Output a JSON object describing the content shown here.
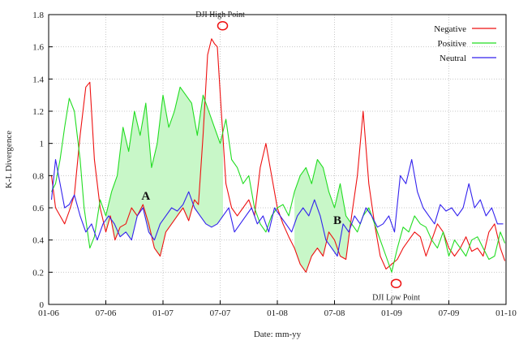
{
  "chart_data": {
    "type": "line",
    "xlabel": "Date: mm-yy",
    "ylabel": "K-L Divergence",
    "x_ticks": [
      "01-06",
      "07-06",
      "01-07",
      "07-07",
      "01-08",
      "07-08",
      "01-09",
      "07-09",
      "01-10"
    ],
    "ylim": [
      0,
      1.8
    ],
    "y_ticks": [
      "0",
      "0.2",
      "0.4",
      "0.6",
      "0.8",
      "1",
      "1.2",
      "1.4",
      "1.6",
      "1.8"
    ],
    "grid": true,
    "legend_position": "top-right",
    "series": [
      {
        "name": "Negative",
        "color": "#ee1111",
        "x": [
          0.05,
          0.12,
          0.2,
          0.28,
          0.36,
          0.45,
          0.55,
          0.65,
          0.72,
          0.8,
          0.9,
          1.0,
          1.08,
          1.16,
          1.25,
          1.35,
          1.45,
          1.55,
          1.65,
          1.75,
          1.85,
          1.95,
          2.05,
          2.15,
          2.25,
          2.35,
          2.45,
          2.55,
          2.62,
          2.7,
          2.78,
          2.85,
          2.9,
          2.95,
          3.02,
          3.1,
          3.2,
          3.3,
          3.4,
          3.5,
          3.6,
          3.7,
          3.8,
          3.9,
          4.0,
          4.1,
          4.2,
          4.3,
          4.4,
          4.5,
          4.6,
          4.7,
          4.8,
          4.9,
          5.0,
          5.1,
          5.2,
          5.3,
          5.4,
          5.5,
          5.6,
          5.7,
          5.8,
          5.9,
          6.0,
          6.1,
          6.2,
          6.3,
          6.4,
          6.5,
          6.6,
          6.7,
          6.8,
          6.9,
          7.0,
          7.1,
          7.2,
          7.3,
          7.4,
          7.5,
          7.6,
          7.7,
          7.8,
          7.9,
          7.98
        ],
        "values": [
          0.8,
          0.6,
          0.55,
          0.5,
          0.58,
          0.68,
          1.05,
          1.35,
          1.38,
          0.9,
          0.6,
          0.45,
          0.55,
          0.4,
          0.48,
          0.5,
          0.6,
          0.55,
          0.62,
          0.5,
          0.35,
          0.3,
          0.45,
          0.5,
          0.55,
          0.6,
          0.52,
          0.65,
          0.62,
          1.05,
          1.55,
          1.65,
          1.62,
          1.6,
          1.2,
          0.75,
          0.6,
          0.55,
          0.6,
          0.65,
          0.55,
          0.85,
          1.0,
          0.8,
          0.6,
          0.5,
          0.42,
          0.35,
          0.25,
          0.2,
          0.3,
          0.35,
          0.3,
          0.45,
          0.4,
          0.3,
          0.28,
          0.55,
          0.8,
          1.2,
          0.75,
          0.5,
          0.3,
          0.22,
          0.25,
          0.28,
          0.35,
          0.4,
          0.45,
          0.42,
          0.3,
          0.4,
          0.5,
          0.45,
          0.35,
          0.3,
          0.35,
          0.42,
          0.33,
          0.35,
          0.3,
          0.45,
          0.5,
          0.35,
          0.27
        ]
      },
      {
        "name": "Positive",
        "color": "#22dd22",
        "x": [
          0.05,
          0.12,
          0.2,
          0.28,
          0.36,
          0.45,
          0.55,
          0.62,
          0.72,
          0.8,
          0.9,
          1.0,
          1.1,
          1.2,
          1.3,
          1.4,
          1.5,
          1.6,
          1.7,
          1.8,
          1.9,
          2.0,
          2.1,
          2.2,
          2.3,
          2.4,
          2.5,
          2.6,
          2.7,
          2.8,
          2.9,
          3.0,
          3.1,
          3.2,
          3.3,
          3.4,
          3.5,
          3.6,
          3.7,
          3.8,
          3.9,
          4.0,
          4.1,
          4.2,
          4.3,
          4.4,
          4.5,
          4.6,
          4.7,
          4.8,
          4.9,
          5.0,
          5.1,
          5.2,
          5.3,
          5.4,
          5.5,
          5.6,
          5.7,
          5.8,
          5.9,
          6.0,
          6.1,
          6.2,
          6.3,
          6.4,
          6.5,
          6.6,
          6.7,
          6.8,
          6.9,
          7.0,
          7.1,
          7.2,
          7.3,
          7.4,
          7.5,
          7.6,
          7.7,
          7.8,
          7.9,
          7.98
        ],
        "values": [
          0.7,
          0.75,
          0.9,
          1.1,
          1.28,
          1.2,
          0.9,
          0.6,
          0.35,
          0.42,
          0.65,
          0.55,
          0.7,
          0.8,
          1.1,
          0.95,
          1.2,
          1.05,
          1.25,
          0.85,
          1.0,
          1.3,
          1.1,
          1.2,
          1.35,
          1.3,
          1.25,
          1.05,
          1.3,
          1.2,
          1.1,
          1.0,
          1.15,
          0.9,
          0.85,
          0.75,
          0.8,
          0.6,
          0.5,
          0.45,
          0.55,
          0.6,
          0.62,
          0.55,
          0.7,
          0.8,
          0.85,
          0.75,
          0.9,
          0.85,
          0.7,
          0.6,
          0.75,
          0.55,
          0.5,
          0.45,
          0.55,
          0.6,
          0.5,
          0.4,
          0.3,
          0.2,
          0.35,
          0.48,
          0.45,
          0.55,
          0.5,
          0.48,
          0.4,
          0.35,
          0.45,
          0.3,
          0.4,
          0.35,
          0.3,
          0.4,
          0.42,
          0.35,
          0.28,
          0.3,
          0.45,
          0.38
        ]
      },
      {
        "name": "Neutral",
        "color": "#3322ee",
        "x": [
          0.05,
          0.12,
          0.2,
          0.28,
          0.36,
          0.45,
          0.55,
          0.65,
          0.75,
          0.85,
          0.95,
          1.05,
          1.15,
          1.25,
          1.35,
          1.45,
          1.55,
          1.65,
          1.75,
          1.85,
          1.95,
          2.05,
          2.15,
          2.25,
          2.35,
          2.45,
          2.55,
          2.65,
          2.75,
          2.85,
          2.95,
          3.05,
          3.15,
          3.25,
          3.35,
          3.45,
          3.55,
          3.65,
          3.75,
          3.85,
          3.95,
          4.05,
          4.15,
          4.25,
          4.35,
          4.45,
          4.55,
          4.65,
          4.75,
          4.85,
          4.95,
          5.05,
          5.15,
          5.25,
          5.35,
          5.45,
          5.55,
          5.65,
          5.75,
          5.85,
          5.95,
          6.05,
          6.15,
          6.25,
          6.35,
          6.45,
          6.55,
          6.65,
          6.75,
          6.85,
          6.95,
          7.05,
          7.15,
          7.25,
          7.35,
          7.45,
          7.55,
          7.65,
          7.75,
          7.85,
          7.95
        ],
        "values": [
          0.65,
          0.9,
          0.75,
          0.6,
          0.62,
          0.68,
          0.55,
          0.45,
          0.5,
          0.4,
          0.5,
          0.55,
          0.5,
          0.42,
          0.45,
          0.4,
          0.55,
          0.6,
          0.45,
          0.4,
          0.5,
          0.55,
          0.6,
          0.58,
          0.62,
          0.7,
          0.6,
          0.55,
          0.5,
          0.48,
          0.5,
          0.55,
          0.6,
          0.45,
          0.5,
          0.55,
          0.6,
          0.5,
          0.55,
          0.45,
          0.6,
          0.55,
          0.5,
          0.45,
          0.55,
          0.6,
          0.55,
          0.65,
          0.55,
          0.4,
          0.35,
          0.3,
          0.5,
          0.45,
          0.55,
          0.5,
          0.6,
          0.55,
          0.48,
          0.5,
          0.55,
          0.45,
          0.8,
          0.75,
          0.9,
          0.7,
          0.6,
          0.55,
          0.5,
          0.62,
          0.58,
          0.6,
          0.55,
          0.6,
          0.75,
          0.6,
          0.65,
          0.55,
          0.6,
          0.5,
          0.5
        ]
      }
    ],
    "annotations": [
      {
        "text": "DJI High Point",
        "x": 3.0,
        "y": 1.65
      },
      {
        "text": "DJI Low Point",
        "x": 6.05,
        "y": 0.17
      }
    ],
    "regions": [
      {
        "label": "A",
        "x_range": [
          1.0,
          3.05
        ]
      },
      {
        "label": "B",
        "x_range": [
          4.3,
          5.75
        ]
      }
    ],
    "region_fill_color": "#c8f7c8",
    "marker_color": "#ee1111"
  }
}
